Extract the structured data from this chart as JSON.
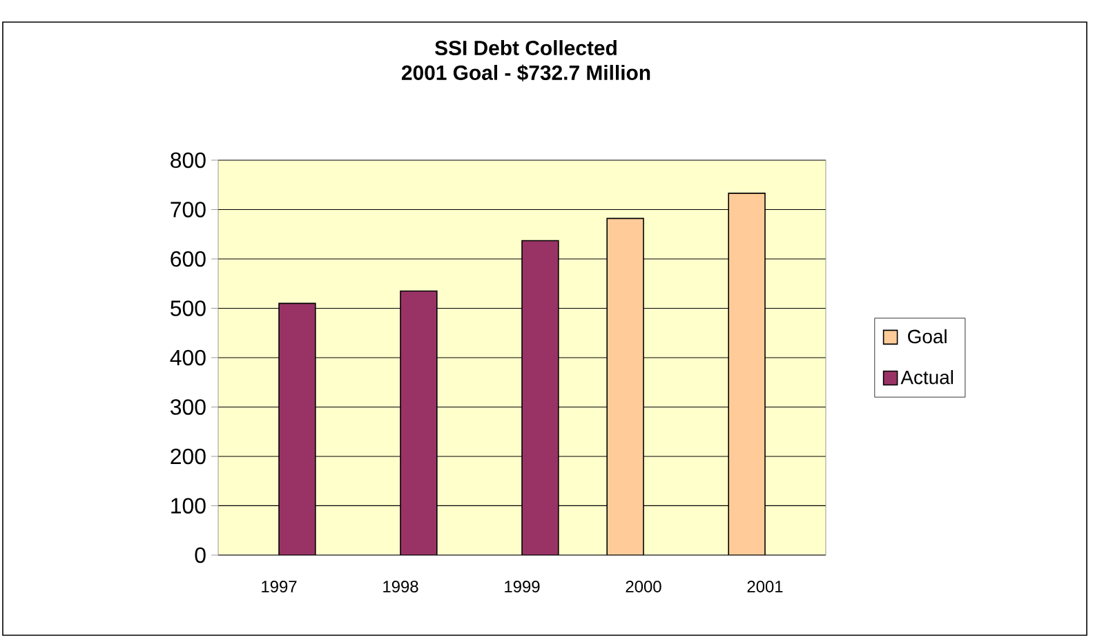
{
  "chart_data": {
    "type": "bar",
    "title": "SSI Debt Collected",
    "subtitle": "2001 Goal - $732.7 Million",
    "categories": [
      "1997",
      "1998",
      "1999",
      "2000",
      "2001"
    ],
    "series": [
      {
        "name": "Goal",
        "color": "#ffcc99",
        "values": [
          null,
          null,
          null,
          682,
          733
        ]
      },
      {
        "name": "Actual",
        "color": "#993366",
        "values": [
          510,
          535,
          637,
          null,
          null
        ]
      }
    ],
    "ylim": [
      0,
      800
    ],
    "yticks": [
      0,
      100,
      200,
      300,
      400,
      500,
      600,
      700,
      800
    ],
    "grid": "y",
    "legend": "right"
  }
}
